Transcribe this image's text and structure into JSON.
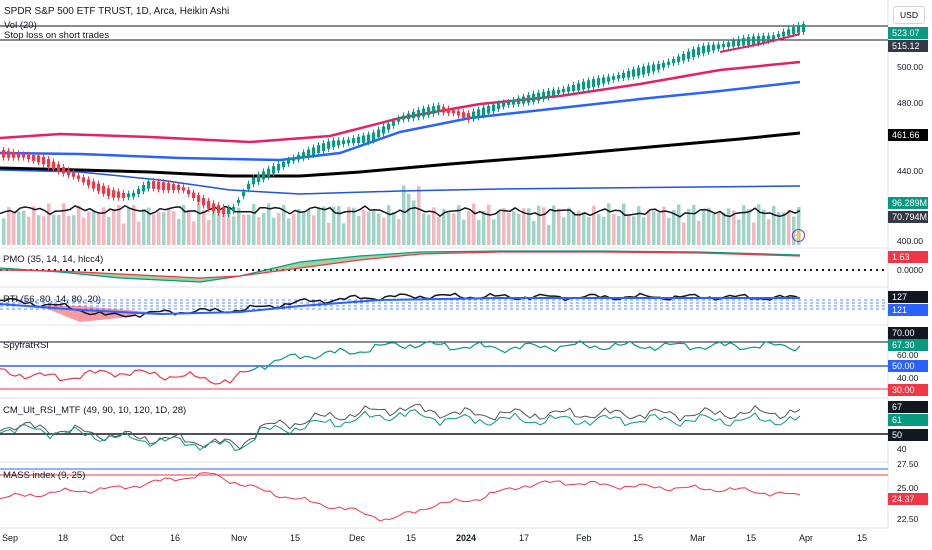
{
  "header": {
    "symbol_title": "SPDR S&P 500 ETF TRUST, 1D, Arca, Heikin Ashi",
    "vol_label": "Vol (20)",
    "study_label": "Stop loss on short trades",
    "currency": "USD"
  },
  "panes": {
    "pmo": "PMO (35, 14, 14, hlcc4)",
    "rti": "RTI (56, 80, 14, 80, 20)",
    "spyfrat": "SpyfratRSI",
    "cm_rsi": "CM_Ult_RSI_MTF (49, 90, 10, 120, 1D, 28)",
    "mass": "MASS index (9, 25)"
  },
  "price_axis": {
    "ticks": [
      "500.00",
      "480.00",
      "440.00",
      "400.00"
    ],
    "tags": [
      {
        "text": "523.07",
        "color": "#089981"
      },
      {
        "text": "515.12",
        "color": "#363a45"
      },
      {
        "text": "461.66",
        "color": "#000000"
      },
      {
        "text": "96.289M",
        "color": "#089981"
      },
      {
        "text": "70.794M",
        "color": "#363a45"
      }
    ]
  },
  "pmo_axis": {
    "tags": [
      {
        "text": "1.63",
        "color": "#f23645"
      }
    ],
    "ticks": [
      "0.0000"
    ]
  },
  "rti_axis": {
    "tags": [
      {
        "text": "127",
        "color": "#131722"
      },
      {
        "text": "121",
        "color": "#2962ff"
      }
    ]
  },
  "spyfrat_axis": {
    "tags": [
      {
        "text": "70.00",
        "color": "#131722"
      },
      {
        "text": "67.30",
        "color": "#089981"
      },
      {
        "text": "50.00",
        "color": "#2962ff"
      },
      {
        "text": "30.00",
        "color": "#f23645"
      }
    ],
    "ticks": [
      "60.00",
      "40.00"
    ]
  },
  "cm_axis": {
    "tags": [
      {
        "text": "67",
        "color": "#131722"
      },
      {
        "text": "61",
        "color": "#089981"
      },
      {
        "text": "50",
        "color": "#131722"
      }
    ],
    "ticks": [
      "40"
    ]
  },
  "mass_axis": {
    "tags": [
      {
        "text": "24.37",
        "color": "#f23645"
      }
    ],
    "ticks": [
      "27.50",
      "25.00",
      "22.50"
    ]
  },
  "time_axis": [
    "Sep",
    "18",
    "Oct",
    "16",
    "Nov",
    "15",
    "Dec",
    "15",
    "2024",
    "17",
    "Feb",
    "15",
    "Mar",
    "15",
    "Apr",
    "15"
  ]
}
